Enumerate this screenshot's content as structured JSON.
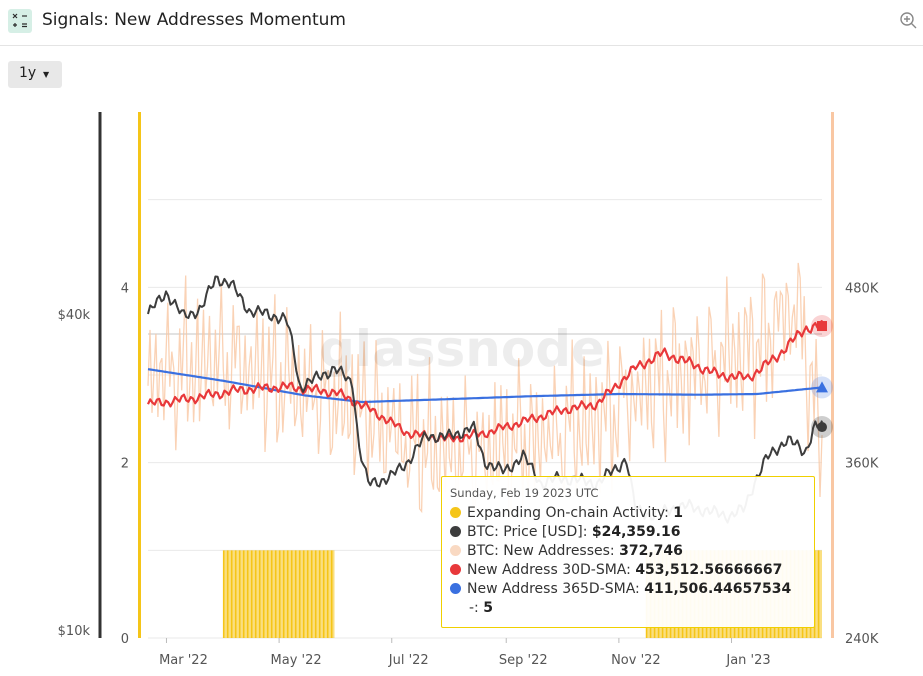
{
  "header": {
    "title": "Signals: New Addresses Momentum",
    "icon": "calculator-icon",
    "zoom_icon": "zoom-in-icon"
  },
  "controls": {
    "range_label": "1y"
  },
  "watermark": "glassnode",
  "colors": {
    "signal": "#f5c518",
    "price": "#3d3d3d",
    "new_addresses": "#f9c7a3",
    "sma30": "#e8383a",
    "sma365": "#3a70e0"
  },
  "tooltip": {
    "date": "Sunday, Feb 19 2023 UTC",
    "rows": [
      {
        "label": "Expanding On-chain Activity:",
        "value": "1"
      },
      {
        "label": "BTC: Price [USD]:",
        "value": "$24,359.16"
      },
      {
        "label": "BTC: New Addresses:",
        "value": "372,746"
      },
      {
        "label": "New Address 30D-SMA:",
        "value": "453,512.56666667"
      },
      {
        "label": "New Address 365D-SMA:",
        "value": "411,506.44657534"
      },
      {
        "label": "-:",
        "value": "5"
      }
    ]
  },
  "chart_data": {
    "type": "line",
    "x_range": [
      "2022-02-19",
      "2023-02-19"
    ],
    "x_ticks": [
      "Mar '22",
      "May '22",
      "Jul '22",
      "Sep '22",
      "Nov '22",
      "Jan '23"
    ],
    "axes": {
      "signal_axis": {
        "ticks": [
          "0",
          "2",
          "4"
        ],
        "range": [
          0,
          6
        ]
      },
      "price_axis": {
        "ticks": [
          "$10k",
          "$40k"
        ],
        "scale": "log"
      },
      "addresses_axis": {
        "ticks": [
          "240K",
          "360K",
          "480K"
        ],
        "range": [
          240000,
          600000
        ]
      }
    },
    "grid": true,
    "series": [
      {
        "name": "Expanding On-chain Activity",
        "kind": "bar",
        "active_ranges": [
          [
            "2022-04-01",
            "2022-05-31"
          ],
          [
            "2022-11-16",
            "2023-02-19"
          ]
        ],
        "value": 1
      },
      {
        "name": "BTC: Price [USD]",
        "x": [
          "2022-02-19",
          "2022-03-01",
          "2022-03-10",
          "2022-03-20",
          "2022-03-28",
          "2022-04-05",
          "2022-04-15",
          "2022-04-25",
          "2022-05-05",
          "2022-05-09",
          "2022-05-12",
          "2022-05-20",
          "2022-05-31",
          "2022-06-10",
          "2022-06-13",
          "2022-06-18",
          "2022-06-30",
          "2022-07-10",
          "2022-07-20",
          "2022-07-31",
          "2022-08-10",
          "2022-08-14",
          "2022-08-20",
          "2022-08-31",
          "2022-09-10",
          "2022-09-20",
          "2022-09-30",
          "2022-10-10",
          "2022-10-20",
          "2022-10-31",
          "2022-11-05",
          "2022-11-08",
          "2022-11-10",
          "2022-11-20",
          "2022-11-30",
          "2022-12-10",
          "2022-12-20",
          "2022-12-31",
          "2023-01-08",
          "2023-01-13",
          "2023-01-20",
          "2023-01-31",
          "2023-02-10",
          "2023-02-15",
          "2023-02-19"
        ],
        "y": [
          40000,
          44000,
          39500,
          41000,
          47000,
          45500,
          40500,
          40000,
          39000,
          34000,
          29000,
          30000,
          31500,
          29500,
          22500,
          19000,
          19500,
          21000,
          23500,
          23300,
          24000,
          24400,
          21000,
          20000,
          21500,
          19000,
          19500,
          19300,
          19000,
          20400,
          21200,
          18500,
          17000,
          16500,
          17100,
          17200,
          16800,
          16500,
          17000,
          19000,
          21200,
          23100,
          21800,
          24500,
          24359
        ]
      },
      {
        "name": "BTC: New Addresses",
        "x": [
          "2022-02-19",
          "2022-04-01",
          "2022-05-15",
          "2022-06-15",
          "2022-07-15",
          "2022-08-15",
          "2022-09-15",
          "2022-10-15",
          "2022-11-15",
          "2022-12-15",
          "2023-01-15",
          "2023-02-05",
          "2023-02-19"
        ],
        "y": [
          420000,
          430000,
          410000,
          395000,
          370000,
          365000,
          375000,
          385000,
          410000,
          425000,
          440000,
          470000,
          372746
        ]
      },
      {
        "name": "New Address 30D-SMA",
        "x": [
          "2022-02-19",
          "2022-03-15",
          "2022-04-10",
          "2022-05-05",
          "2022-06-01",
          "2022-06-20",
          "2022-07-10",
          "2022-08-01",
          "2022-08-20",
          "2022-09-10",
          "2022-10-01",
          "2022-10-20",
          "2022-11-10",
          "2022-11-25",
          "2022-12-10",
          "2022-12-25",
          "2023-01-10",
          "2023-01-25",
          "2023-02-10",
          "2023-02-19"
        ],
        "y": [
          400000,
          404000,
          410000,
          412000,
          408000,
          396000,
          380000,
          376000,
          380000,
          388000,
          396000,
          400000,
          425000,
          435000,
          428000,
          420000,
          418000,
          432000,
          452000,
          453512.57
        ]
      },
      {
        "name": "New Address 365D-SMA",
        "x": [
          "2022-02-19",
          "2022-04-01",
          "2022-05-15",
          "2022-06-15",
          "2022-08-01",
          "2022-09-15",
          "2022-11-01",
          "2022-12-15",
          "2023-01-15",
          "2023-02-19"
        ],
        "y": [
          424000,
          416000,
          406000,
          401500,
          403500,
          405500,
          407000,
          406500,
          407000,
          411506.45
        ]
      }
    ]
  }
}
